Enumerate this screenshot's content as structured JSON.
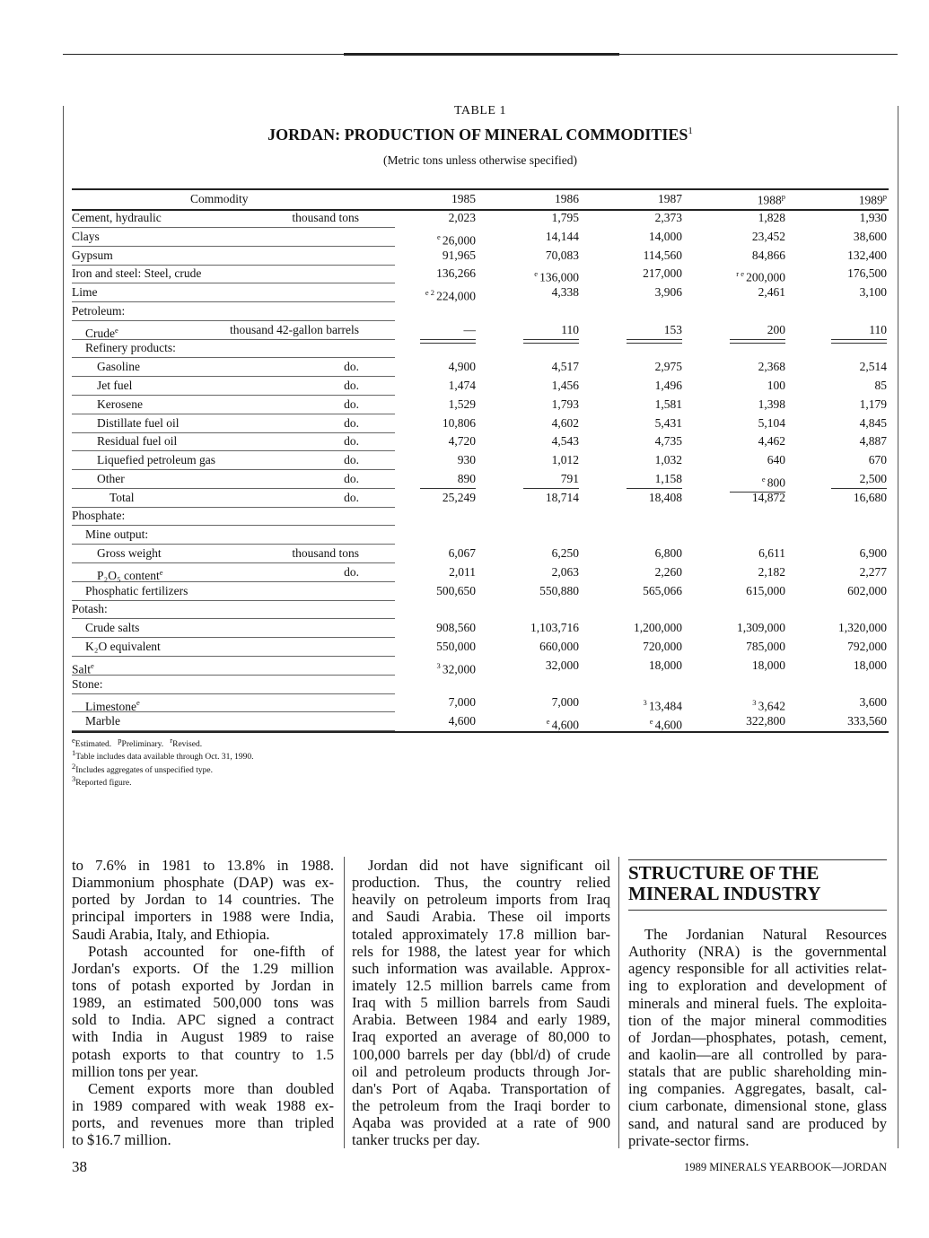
{
  "table": {
    "number": "TABLE 1",
    "title": "JORDAN: PRODUCTION OF MINERAL COMMODITIES",
    "title_note": "1",
    "subtitle": "(Metric tons unless otherwise specified)",
    "header": {
      "commodity": "Commodity",
      "years": [
        [
          "1985",
          ""
        ],
        [
          "1986",
          ""
        ],
        [
          "1987",
          ""
        ],
        [
          "1988",
          "p"
        ],
        [
          "1989",
          "p"
        ]
      ]
    },
    "rows": [
      {
        "label": "Cement, hydraulic",
        "indent": 0,
        "unit": "thousand tons",
        "values": [
          [
            "",
            "2,023"
          ],
          [
            "",
            "1,795"
          ],
          [
            "",
            "2,373"
          ],
          [
            "",
            "1,828"
          ],
          [
            "",
            "1,930"
          ]
        ]
      },
      {
        "label": "Clays",
        "indent": 0,
        "values": [
          [
            "e",
            "26,000"
          ],
          [
            "",
            "14,144"
          ],
          [
            "",
            "14,000"
          ],
          [
            "",
            "23,452"
          ],
          [
            "",
            "38,600"
          ]
        ]
      },
      {
        "label": "Gypsum",
        "indent": 0,
        "values": [
          [
            "",
            "91,965"
          ],
          [
            "",
            "70,083"
          ],
          [
            "",
            "114,560"
          ],
          [
            "",
            "84,866"
          ],
          [
            "",
            "132,400"
          ]
        ]
      },
      {
        "label": "Iron and steel: Steel, crude",
        "indent": 0,
        "values": [
          [
            "",
            "136,266"
          ],
          [
            "e",
            "136,000"
          ],
          [
            "",
            "217,000"
          ],
          [
            "r e",
            "200,000"
          ],
          [
            "",
            "176,500"
          ]
        ]
      },
      {
        "label": "Lime",
        "indent": 0,
        "values": [
          [
            "e 2",
            "224,000"
          ],
          [
            "",
            "4,338"
          ],
          [
            "",
            "3,906"
          ],
          [
            "",
            "2,461"
          ],
          [
            "",
            "3,100"
          ]
        ]
      },
      {
        "label": "Petroleum:",
        "indent": 0
      },
      {
        "label": "Crude",
        "label_note": "e",
        "indent": 1,
        "unit": "thousand 42-gallon barrels",
        "underline": "double",
        "values": [
          [
            "",
            "—"
          ],
          [
            "",
            "110"
          ],
          [
            "",
            "153"
          ],
          [
            "",
            "200"
          ],
          [
            "",
            "110"
          ]
        ]
      },
      {
        "label": "Refinery products:",
        "indent": 1
      },
      {
        "label": "Gasoline",
        "indent": 2,
        "unit": "do.",
        "values": [
          [
            "",
            "4,900"
          ],
          [
            "",
            "4,517"
          ],
          [
            "",
            "2,975"
          ],
          [
            "",
            "2,368"
          ],
          [
            "",
            "2,514"
          ]
        ]
      },
      {
        "label": "Jet fuel",
        "indent": 2,
        "unit": "do.",
        "values": [
          [
            "",
            "1,474"
          ],
          [
            "",
            "1,456"
          ],
          [
            "",
            "1,496"
          ],
          [
            "",
            "100"
          ],
          [
            "",
            "85"
          ]
        ]
      },
      {
        "label": "Kerosene",
        "indent": 2,
        "unit": "do.",
        "values": [
          [
            "",
            "1,529"
          ],
          [
            "",
            "1,793"
          ],
          [
            "",
            "1,581"
          ],
          [
            "",
            "1,398"
          ],
          [
            "",
            "1,179"
          ]
        ]
      },
      {
        "label": "Distillate fuel oil",
        "indent": 2,
        "unit": "do.",
        "values": [
          [
            "",
            "10,806"
          ],
          [
            "",
            "4,602"
          ],
          [
            "",
            "5,431"
          ],
          [
            "",
            "5,104"
          ],
          [
            "",
            "4,845"
          ]
        ]
      },
      {
        "label": "Residual fuel oil",
        "indent": 2,
        "unit": "do.",
        "values": [
          [
            "",
            "4,720"
          ],
          [
            "",
            "4,543"
          ],
          [
            "",
            "4,735"
          ],
          [
            "",
            "4,462"
          ],
          [
            "",
            "4,887"
          ]
        ]
      },
      {
        "label": "Liquefied petroleum gas",
        "indent": 2,
        "unit": "do.",
        "values": [
          [
            "",
            "930"
          ],
          [
            "",
            "1,012"
          ],
          [
            "",
            "1,032"
          ],
          [
            "",
            "640"
          ],
          [
            "",
            "670"
          ]
        ]
      },
      {
        "label": "Other",
        "indent": 2,
        "unit": "do.",
        "underline": "single",
        "values": [
          [
            "",
            "890"
          ],
          [
            "",
            "791"
          ],
          [
            "",
            "1,158"
          ],
          [
            "e",
            "800"
          ],
          [
            "",
            "2,500"
          ]
        ]
      },
      {
        "label": "Total",
        "indent": 3,
        "unit": "do.",
        "values": [
          [
            "",
            "25,249"
          ],
          [
            "",
            "18,714"
          ],
          [
            "",
            "18,408"
          ],
          [
            "",
            "14,872"
          ],
          [
            "",
            "16,680"
          ]
        ]
      },
      {
        "label": "Phosphate:",
        "indent": 0
      },
      {
        "label": "Mine output:",
        "indent": 1
      },
      {
        "label": "Gross weight",
        "indent": 2,
        "unit": "thousand tons",
        "values": [
          [
            "",
            "6,067"
          ],
          [
            "",
            "6,250"
          ],
          [
            "",
            "6,800"
          ],
          [
            "",
            "6,611"
          ],
          [
            "",
            "6,900"
          ]
        ]
      },
      {
        "label": "P₂O₅ content",
        "label_note": "e",
        "indent": 2,
        "unit": "do.",
        "values": [
          [
            "",
            "2,011"
          ],
          [
            "",
            "2,063"
          ],
          [
            "",
            "2,260"
          ],
          [
            "",
            "2,182"
          ],
          [
            "",
            "2,277"
          ]
        ]
      },
      {
        "label": "Phosphatic fertilizers",
        "indent": 1,
        "values": [
          [
            "",
            "500,650"
          ],
          [
            "",
            "550,880"
          ],
          [
            "",
            "565,066"
          ],
          [
            "",
            "615,000"
          ],
          [
            "",
            "602,000"
          ]
        ]
      },
      {
        "label": "Potash:",
        "indent": 0
      },
      {
        "label": "Crude salts",
        "indent": 1,
        "values": [
          [
            "",
            "908,560"
          ],
          [
            "",
            "1,103,716"
          ],
          [
            "",
            "1,200,000"
          ],
          [
            "",
            "1,309,000"
          ],
          [
            "",
            "1,320,000"
          ]
        ]
      },
      {
        "label": "K₂O equivalent",
        "indent": 1,
        "values": [
          [
            "",
            "550,000"
          ],
          [
            "",
            "660,000"
          ],
          [
            "",
            "720,000"
          ],
          [
            "",
            "785,000"
          ],
          [
            "",
            "792,000"
          ]
        ]
      },
      {
        "label": "Salt",
        "label_note": "e",
        "indent": 0,
        "values": [
          [
            "3",
            "32,000"
          ],
          [
            "",
            "32,000"
          ],
          [
            "",
            "18,000"
          ],
          [
            "",
            "18,000"
          ],
          [
            "",
            "18,000"
          ]
        ]
      },
      {
        "label": "Stone:",
        "indent": 0
      },
      {
        "label": "Limestone",
        "label_note": "e",
        "indent": 1,
        "values": [
          [
            "",
            "7,000"
          ],
          [
            "",
            "7,000"
          ],
          [
            "3",
            "13,484"
          ],
          [
            "3",
            "3,642"
          ],
          [
            "",
            "3,600"
          ]
        ]
      },
      {
        "label": "Marble",
        "indent": 1,
        "values": [
          [
            "",
            "4,600"
          ],
          [
            "e",
            "4,600"
          ],
          [
            "e",
            "4,600"
          ],
          [
            "",
            "322,800"
          ],
          [
            "",
            "333,560"
          ]
        ]
      }
    ],
    "footnotes": [
      {
        "parts": [
          [
            "e",
            "Estimated."
          ],
          [
            "p",
            "Preliminary."
          ],
          [
            "r",
            "Revised."
          ]
        ]
      },
      {
        "parts": [
          [
            "1",
            "Table includes data available through Oct. 31, 1990."
          ]
        ]
      },
      {
        "parts": [
          [
            "2",
            "Includes aggregates of unspecified type."
          ]
        ]
      },
      {
        "parts": [
          [
            "3",
            "Reported figure."
          ]
        ]
      }
    ]
  },
  "columns": [
    {
      "paragraphs": [
        {
          "indent": false,
          "lines": [
            "to 7.6% in 1981 to 13.8% in 1988.",
            "Diammonium phosphate (DAP) was ex-",
            "ported by Jordan to 14 countries. The",
            "principal importers in 1988 were India,",
            "Saudi Arabia, Italy, and Ethiopia."
          ]
        },
        {
          "indent": true,
          "lines": [
            "Potash accounted for one-fifth of",
            "Jordan's exports. Of the 1.29 million",
            "tons of potash exported by Jordan in",
            "1989, an estimated 500,000 tons was",
            "sold to India. APC signed a contract",
            "with India in August 1989 to raise",
            "potash exports to that country to 1.5",
            "million tons per year."
          ]
        },
        {
          "indent": true,
          "lines": [
            "Cement exports more than doubled",
            "in 1989 compared with weak 1988 ex-",
            "ports, and revenues more than tripled",
            "to $16.7 million."
          ]
        }
      ]
    },
    {
      "paragraphs": [
        {
          "indent": true,
          "lines": [
            "Jordan did not have significant oil",
            "production. Thus, the country relied",
            "heavily on petroleum imports from Iraq",
            "and Saudi Arabia. These oil imports",
            "totaled approximately 17.8 million bar-",
            "rels for 1988, the latest year for which",
            "such information was available. Approx-",
            "imately 12.5 million barrels came from",
            "Iraq with 5 million barrels from Saudi",
            "Arabia. Between 1984 and early 1989,",
            "Iraq exported an average of 80,000 to",
            "100,000 barrels per day (bbl/d) of crude",
            "oil and petroleum products through Jor-",
            "dan's Port of Aqaba. Transportation of",
            "the petroleum from the Iraqi border to",
            "Aqaba was provided at a rate of 900",
            "tanker trucks per day."
          ]
        }
      ]
    },
    {
      "heading": "STRUCTURE OF THE MINERAL INDUSTRY",
      "paragraphs": [
        {
          "indent": true,
          "lines": [
            "The Jordanian Natural Resources",
            "Authority (NRA) is the governmental",
            "agency responsible for all activities relat-",
            "ing to exploration and development of",
            "minerals and mineral fuels. The exploita-",
            "tion of the major mineral commodities",
            "of Jordan—phosphates, potash, cement,",
            "and kaolin—are all controlled by para-",
            "statals that are public shareholding min-",
            "ing companies. Aggregates, basalt, cal-",
            "cium carbonate, dimensional stone, glass",
            "sand, and natural sand are produced by",
            "private-sector firms."
          ]
        }
      ]
    }
  ],
  "footer": {
    "page_number": "38",
    "running_title": "1989 MINERALS YEARBOOK—JORDAN"
  }
}
